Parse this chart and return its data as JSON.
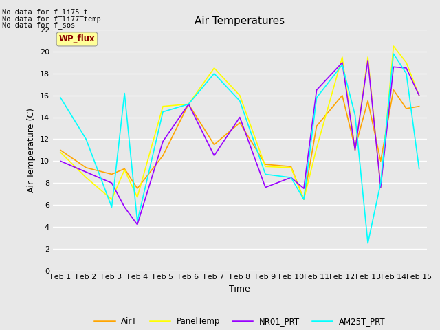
{
  "title": "Air Temperatures",
  "xlabel": "Time",
  "ylabel": "Air Temperature (C)",
  "annotations": [
    "No data for f_li75_t",
    "No data for f_li77_temp",
    "No data for f_sos"
  ],
  "wp_flux_label": "WP_flux",
  "x_labels": [
    "Feb 1",
    "Feb 2",
    "Feb 3",
    "Feb 4",
    "Feb 5",
    "Feb 6",
    "Feb 7",
    "Feb 8",
    "Feb 9",
    "Feb 10",
    "Feb 11",
    "Feb 12",
    "Feb 13",
    "Feb 14",
    "Feb 15"
  ],
  "ylim": [
    0,
    22
  ],
  "yticks": [
    0,
    2,
    4,
    6,
    8,
    10,
    12,
    14,
    16,
    18,
    20,
    22
  ],
  "series": {
    "AirT": {
      "color": "#FFA500",
      "x": [
        0,
        1,
        2,
        2.5,
        3,
        4,
        5,
        6,
        7,
        8,
        9,
        9.5,
        10,
        11,
        11.5,
        12,
        12.5,
        13,
        13.5,
        14
      ],
      "y": [
        11.0,
        9.4,
        8.8,
        9.3,
        7.5,
        10.5,
        15.2,
        11.5,
        13.5,
        9.7,
        9.5,
        6.5,
        13.2,
        16.0,
        11.2,
        15.5,
        10.0,
        16.5,
        14.8,
        15.0
      ]
    },
    "PanelTemp": {
      "color": "#FFFF00",
      "x": [
        0,
        1,
        2,
        2.5,
        3,
        4,
        5,
        6,
        7,
        8,
        9,
        9.5,
        10,
        11,
        11.5,
        12,
        12.5,
        13,
        13.5,
        14
      ],
      "y": [
        10.8,
        8.5,
        6.5,
        9.2,
        6.7,
        15.0,
        15.2,
        18.5,
        16.0,
        9.5,
        9.4,
        6.5,
        11.2,
        19.5,
        11.0,
        19.5,
        7.6,
        20.5,
        19.0,
        16.0
      ]
    },
    "NR01_PRT": {
      "color": "#9900FF",
      "x": [
        0,
        1,
        2,
        2.5,
        3,
        4,
        5,
        6,
        7,
        8,
        9,
        9.5,
        10,
        11,
        11.5,
        12,
        12.5,
        13,
        13.5,
        14
      ],
      "y": [
        10.0,
        9.0,
        8.0,
        5.8,
        4.2,
        11.8,
        15.2,
        10.5,
        14.0,
        7.6,
        8.5,
        7.5,
        16.5,
        19.0,
        11.0,
        19.2,
        7.6,
        18.6,
        18.5,
        16.0
      ]
    },
    "AM25T_PRT": {
      "color": "#00FFFF",
      "x": [
        0,
        1,
        2,
        2.5,
        3,
        4,
        5,
        6,
        7,
        8,
        9,
        9.5,
        10,
        11,
        11.5,
        12,
        12.5,
        13,
        13.5,
        14
      ],
      "y": [
        15.8,
        12.0,
        5.8,
        16.2,
        4.5,
        14.5,
        15.2,
        18.0,
        15.5,
        8.8,
        8.5,
        6.5,
        15.8,
        18.8,
        14.2,
        2.5,
        8.0,
        19.8,
        18.0,
        9.3
      ]
    }
  },
  "legend_entries": [
    "AirT",
    "PanelTemp",
    "NR01_PRT",
    "AM25T_PRT"
  ],
  "legend_colors": [
    "#FFA500",
    "#FFFF00",
    "#9900FF",
    "#00FFFF"
  ],
  "bg_color": "#E8E8E8",
  "plot_bg": "#E8E8E8",
  "title_fontsize": 11,
  "axis_label_fontsize": 9,
  "tick_fontsize": 8
}
